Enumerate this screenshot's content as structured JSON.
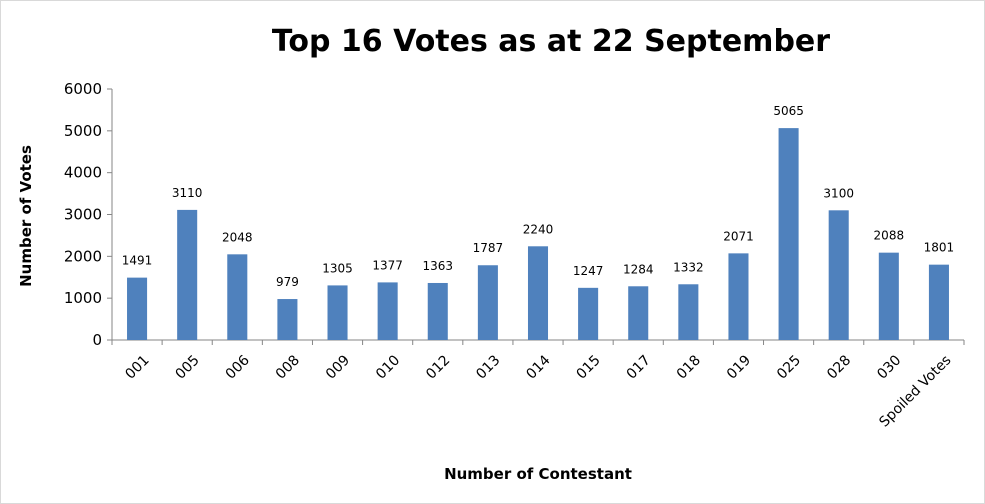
{
  "chart_data": {
    "type": "bar",
    "title": "Top 16 Votes as at 22 September",
    "xlabel": "Number of Contestant",
    "ylabel": "Number of Votes",
    "categories": [
      "001",
      "005",
      "006",
      "008",
      "009",
      "010",
      "012",
      "013",
      "014",
      "015",
      "017",
      "018",
      "019",
      "025",
      "028",
      "030",
      "Spoiled Votes"
    ],
    "values": [
      1491,
      3110,
      2048,
      979,
      1305,
      1377,
      1363,
      1787,
      2240,
      1247,
      1284,
      1332,
      2071,
      5065,
      3100,
      2088,
      1801
    ],
    "ylim": [
      0,
      6000
    ],
    "yticks": [
      0,
      1000,
      2000,
      3000,
      4000,
      5000,
      6000
    ],
    "bar_color": "#4f81bd",
    "grid": false,
    "legend": "none"
  }
}
